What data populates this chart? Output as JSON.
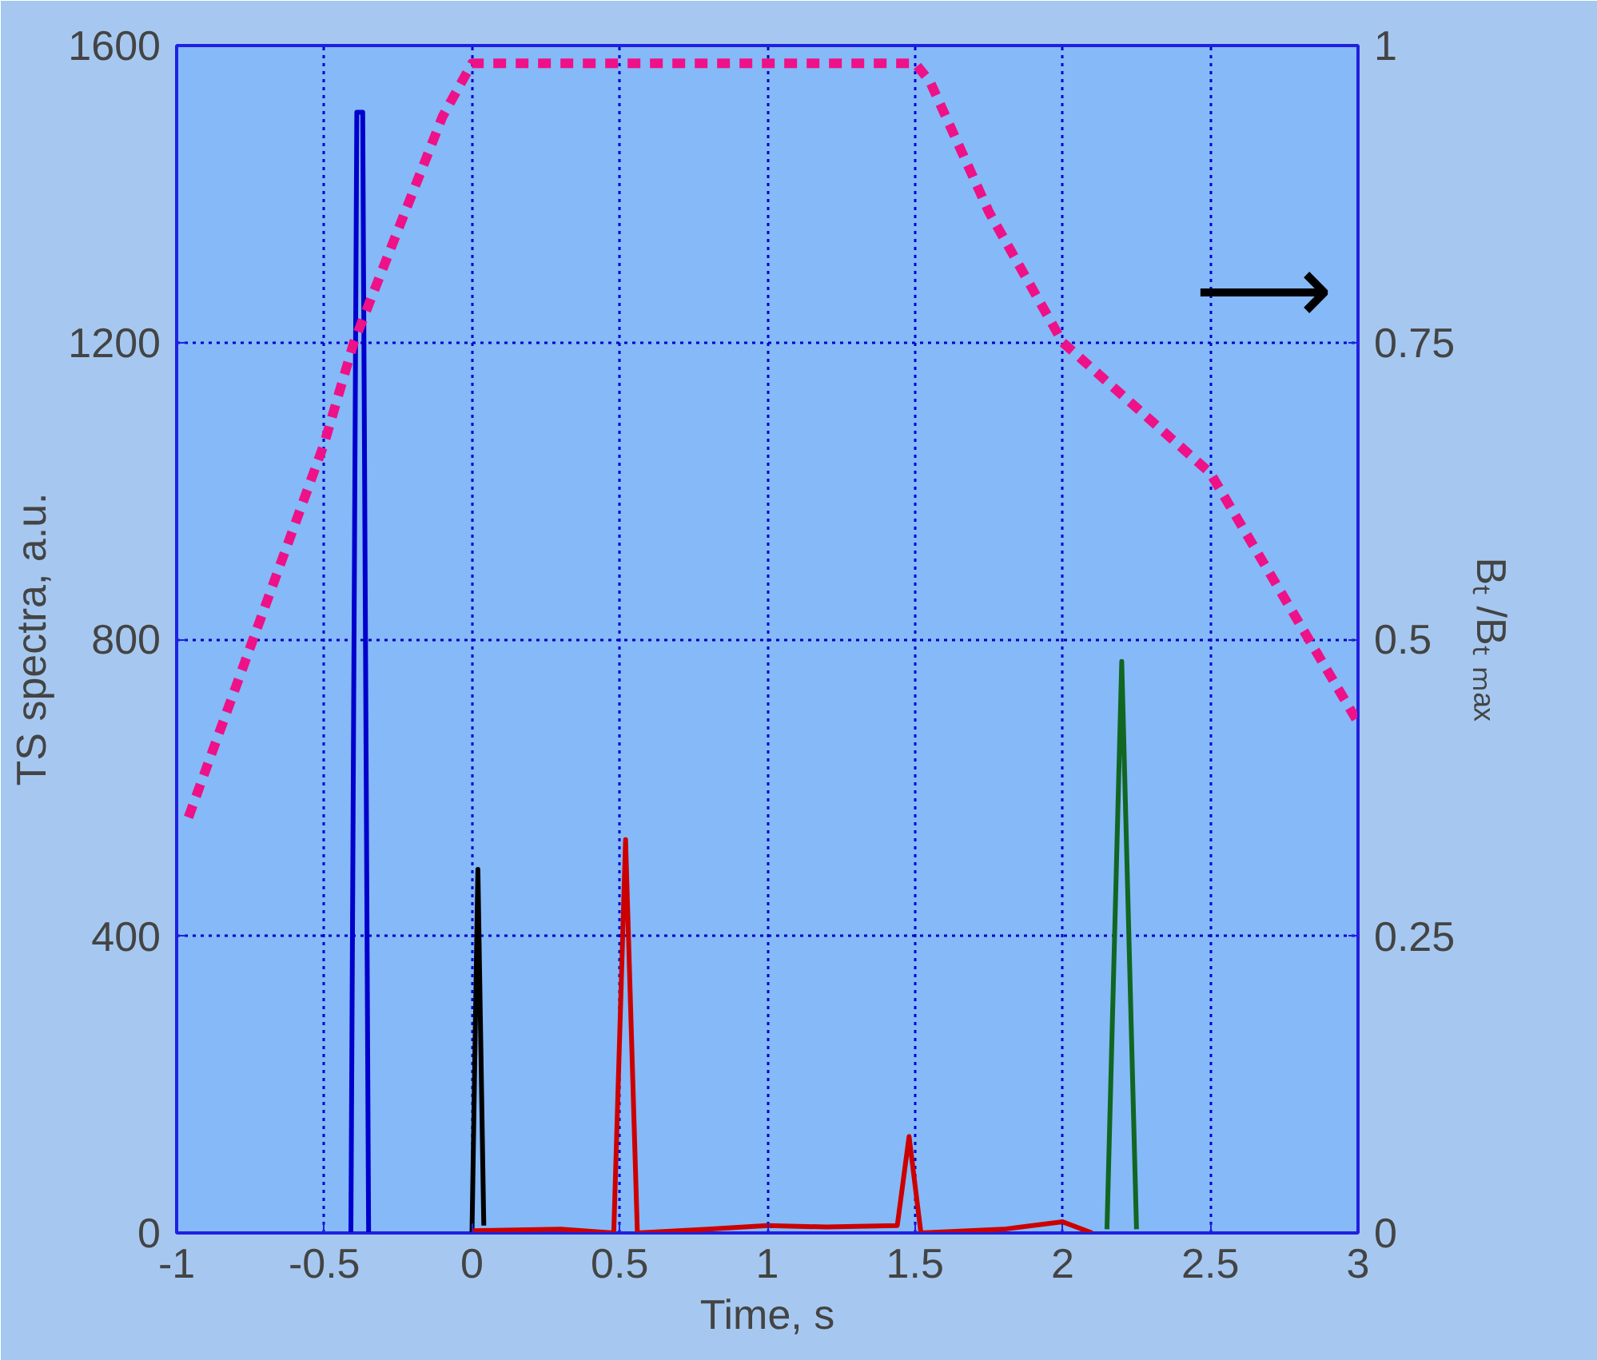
{
  "chart_data": {
    "type": "line",
    "xlabel": "Time, s",
    "ylabel": "TS spectra, a.u.",
    "y2label": "Bₜ /Bₜ ₘₐₓ",
    "xlim": [
      -1,
      3
    ],
    "xticks": [
      -1,
      -0.5,
      0,
      0.5,
      1,
      1.5,
      2,
      2.5,
      3
    ],
    "ylim": [
      0,
      1600
    ],
    "yticks": [
      0,
      400,
      800,
      1200,
      1600
    ],
    "y2lim": [
      0,
      1
    ],
    "y2ticks": [
      0,
      0.25,
      0.5,
      0.75,
      1
    ],
    "grid": true,
    "series": [
      {
        "color": "#0000cc",
        "x": [
          -0.41,
          -0.39,
          -0.37,
          -0.35
        ],
        "values": [
          0,
          1510,
          1510,
          0
        ]
      },
      {
        "color": "#000000",
        "x": [
          0,
          0.02,
          0.04
        ],
        "values": [
          0,
          490,
          10
        ]
      },
      {
        "color": "#cc0000",
        "x": [
          0.0,
          0.3,
          0.48,
          0.52,
          0.56,
          0.8,
          1.0,
          1.2,
          1.44,
          1.48,
          1.52,
          1.8,
          2.0,
          2.1
        ],
        "values": [
          3,
          5,
          0,
          530,
          0,
          5,
          10,
          8,
          10,
          130,
          0,
          5,
          15,
          0
        ]
      },
      {
        "color": "#116622",
        "x": [
          2.15,
          2.2,
          2.25
        ],
        "values": [
          5,
          770,
          5
        ]
      },
      {
        "color": "#ee1188",
        "axis": "y2",
        "line_style": "dashed",
        "x": [
          -0.96,
          -0.5,
          -0.4,
          -0.1,
          0.0,
          0.5,
          1.0,
          1.5,
          1.55,
          1.75,
          2.0,
          2.5,
          3.0
        ],
        "values": [
          0.35,
          0.665,
          0.75,
          0.94,
          0.985,
          0.985,
          0.985,
          0.985,
          0.97,
          0.86,
          0.75,
          0.64,
          0.43
        ]
      }
    ],
    "annotations": [
      "⟶"
    ]
  }
}
